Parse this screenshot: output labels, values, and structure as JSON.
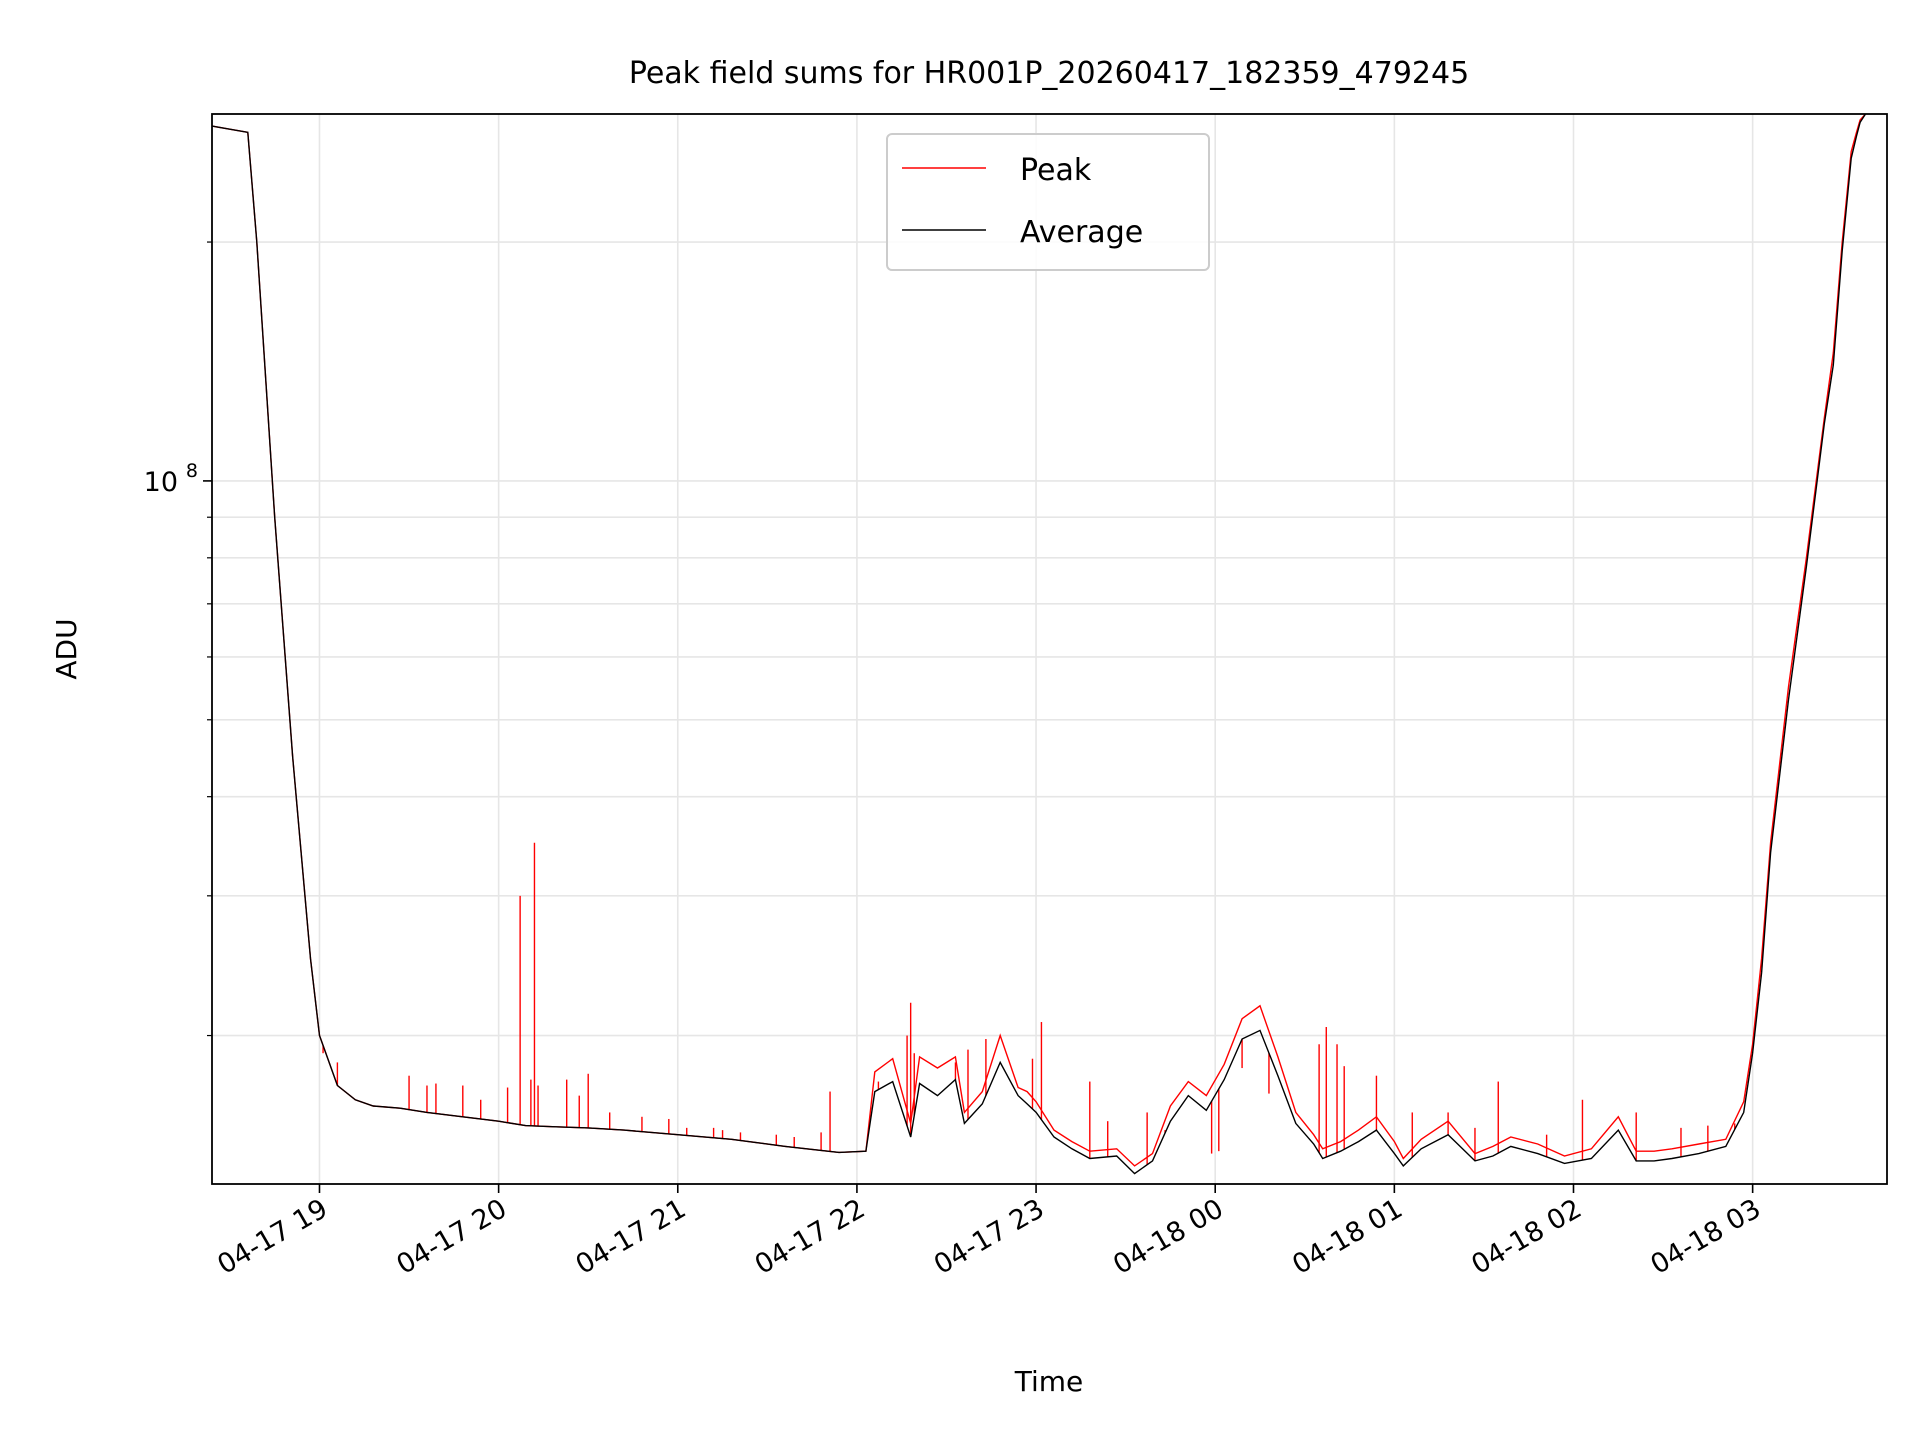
{
  "chart_data": {
    "type": "line",
    "title": "Peak field sums for HR001P_20260417_182359_479245",
    "xlabel": "Time",
    "ylabel": "ADU",
    "y_scale": "log",
    "grid": true,
    "legend_position": "top-center",
    "xlim_hours": [
      18.4,
      27.75
    ],
    "ylim": [
      13000000,
      290000000
    ],
    "x_ticks": [
      {
        "hours": 19,
        "label": "04-17 19"
      },
      {
        "hours": 20,
        "label": "04-17 20"
      },
      {
        "hours": 21,
        "label": "04-17 21"
      },
      {
        "hours": 22,
        "label": "04-17 22"
      },
      {
        "hours": 23,
        "label": "04-17 23"
      },
      {
        "hours": 24,
        "label": "04-18 00"
      },
      {
        "hours": 25,
        "label": "04-18 01"
      },
      {
        "hours": 26,
        "label": "04-18 02"
      },
      {
        "hours": 27,
        "label": "04-18 03"
      }
    ],
    "y_major_tick": {
      "value": 100000000,
      "base": "10",
      "exponent": "8"
    },
    "y_minor_ticks": [
      20000000,
      30000000,
      40000000,
      50000000,
      60000000,
      70000000,
      80000000,
      90000000,
      200000000
    ],
    "series": [
      {
        "name": "Peak",
        "color": "#ff0000",
        "x_hours": [
          18.4,
          18.6,
          18.65,
          18.75,
          18.85,
          18.95,
          19.0,
          19.1,
          19.2,
          19.3,
          19.45,
          19.6,
          19.8,
          20.0,
          20.15,
          20.3,
          20.5,
          20.7,
          21.0,
          21.3,
          21.6,
          21.9,
          22.05,
          22.1,
          22.2,
          22.3,
          22.35,
          22.45,
          22.55,
          22.6,
          22.7,
          22.8,
          22.9,
          22.95,
          23.0,
          23.1,
          23.2,
          23.3,
          23.45,
          23.55,
          23.65,
          23.75,
          23.85,
          23.95,
          24.05,
          24.15,
          24.25,
          24.35,
          24.45,
          24.55,
          24.6,
          24.7,
          24.8,
          24.9,
          25.0,
          25.05,
          25.15,
          25.3,
          25.45,
          25.55,
          25.65,
          25.8,
          25.95,
          26.1,
          26.25,
          26.35,
          26.45,
          26.55,
          26.7,
          26.85,
          26.95,
          27.0,
          27.05,
          27.1,
          27.2,
          27.3,
          27.4,
          27.45,
          27.5,
          27.55,
          27.58,
          27.6,
          27.63
        ],
        "values": [
          280000000,
          275000000,
          200000000,
          90000000,
          45000000,
          25000000,
          20000000,
          17300000,
          16600000,
          16300000,
          16200000,
          16000000,
          15800000,
          15600000,
          15400000,
          15350000,
          15300000,
          15200000,
          15000000,
          14800000,
          14500000,
          14250000,
          14300000,
          18000000,
          18700000,
          15500000,
          18800000,
          18200000,
          18800000,
          16000000,
          17000000,
          20000000,
          17200000,
          17000000,
          16500000,
          15200000,
          14700000,
          14300000,
          14400000,
          13700000,
          14200000,
          16300000,
          17500000,
          16800000,
          18400000,
          21000000,
          21800000,
          18800000,
          16000000,
          15000000,
          14400000,
          14700000,
          15200000,
          15800000,
          14700000,
          14000000,
          14800000,
          15600000,
          14200000,
          14500000,
          14900000,
          14600000,
          14100000,
          14400000,
          15800000,
          14300000,
          14300000,
          14400000,
          14600000,
          14800000,
          16500000,
          19500000,
          25000000,
          35000000,
          55000000,
          80000000,
          120000000,
          145000000,
          200000000,
          260000000,
          275000000,
          285000000,
          290000000
        ]
      },
      {
        "name": "Average",
        "color": "#000000",
        "x_hours": [
          18.4,
          18.6,
          18.65,
          18.75,
          18.85,
          18.95,
          19.0,
          19.1,
          19.2,
          19.3,
          19.45,
          19.6,
          19.8,
          20.0,
          20.15,
          20.3,
          20.5,
          20.7,
          21.0,
          21.3,
          21.6,
          21.9,
          22.05,
          22.1,
          22.2,
          22.3,
          22.35,
          22.45,
          22.55,
          22.6,
          22.7,
          22.8,
          22.9,
          22.95,
          23.0,
          23.1,
          23.2,
          23.3,
          23.45,
          23.55,
          23.65,
          23.75,
          23.85,
          23.95,
          24.05,
          24.15,
          24.25,
          24.35,
          24.45,
          24.55,
          24.6,
          24.7,
          24.8,
          24.9,
          25.0,
          25.05,
          25.15,
          25.3,
          25.45,
          25.55,
          25.65,
          25.8,
          25.95,
          26.1,
          26.25,
          26.35,
          26.45,
          26.55,
          26.7,
          26.85,
          26.95,
          27.0,
          27.05,
          27.1,
          27.2,
          27.3,
          27.4,
          27.45,
          27.5,
          27.55,
          27.58,
          27.6,
          27.63
        ],
        "values": [
          280000000,
          275000000,
          200000000,
          90000000,
          45000000,
          25000000,
          20000000,
          17300000,
          16600000,
          16300000,
          16200000,
          16000000,
          15800000,
          15600000,
          15400000,
          15350000,
          15300000,
          15200000,
          15000000,
          14800000,
          14500000,
          14250000,
          14300000,
          17000000,
          17500000,
          14900000,
          17400000,
          16800000,
          17600000,
          15500000,
          16400000,
          18500000,
          16800000,
          16400000,
          16000000,
          14900000,
          14400000,
          14000000,
          14100000,
          13400000,
          13900000,
          15600000,
          16800000,
          16100000,
          17600000,
          19800000,
          20300000,
          17800000,
          15500000,
          14600000,
          14000000,
          14300000,
          14700000,
          15200000,
          14200000,
          13700000,
          14400000,
          15000000,
          13900000,
          14100000,
          14500000,
          14200000,
          13800000,
          14000000,
          15200000,
          13900000,
          13900000,
          14000000,
          14200000,
          14500000,
          16000000,
          19000000,
          24000000,
          34000000,
          53000000,
          78000000,
          118000000,
          140000000,
          195000000,
          255000000,
          272000000,
          283000000,
          290000000
        ]
      }
    ],
    "spikes": {
      "x_hours": [
        19.02,
        19.1,
        19.5,
        19.6,
        19.65,
        19.8,
        19.9,
        20.05,
        20.12,
        20.18,
        20.2,
        20.22,
        20.38,
        20.45,
        20.5,
        20.62,
        20.8,
        20.95,
        21.05,
        21.2,
        21.25,
        21.35,
        21.55,
        21.65,
        21.8,
        21.85,
        22.12,
        22.28,
        22.3,
        22.32,
        22.55,
        22.62,
        22.72,
        22.98,
        23.03,
        23.3,
        23.4,
        23.62,
        23.72,
        23.98,
        24.02,
        24.15,
        24.3,
        24.58,
        24.62,
        24.68,
        24.72,
        24.9,
        25.1,
        25.3,
        25.45,
        25.58,
        25.85,
        26.05,
        26.35,
        26.6,
        26.75,
        26.9
      ],
      "values": [
        19000000,
        18500000,
        17800000,
        17300000,
        17400000,
        17300000,
        16600000,
        17200000,
        30000000,
        17600000,
        35000000,
        17300000,
        17600000,
        16800000,
        17900000,
        16000000,
        15800000,
        15700000,
        15300000,
        15300000,
        15200000,
        15100000,
        15000000,
        14900000,
        15100000,
        17000000,
        17500000,
        20000000,
        22000000,
        19000000,
        18500000,
        19200000,
        19800000,
        18700000,
        20800000,
        17500000,
        15600000,
        16000000,
        15200000,
        14200000,
        14300000,
        18200000,
        16900000,
        19500000,
        20500000,
        19500000,
        18300000,
        17800000,
        16000000,
        16000000,
        15300000,
        17500000,
        15000000,
        16600000,
        16000000,
        15300000,
        15400000,
        15500000
      ]
    }
  }
}
